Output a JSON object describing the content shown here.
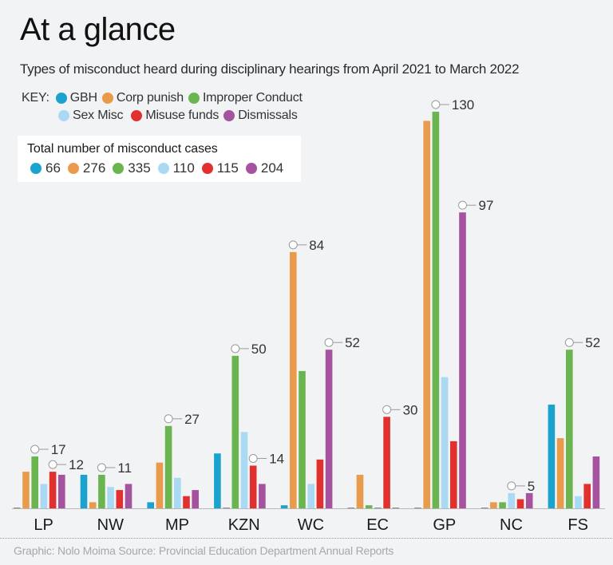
{
  "title": "At a glance",
  "subtitle": "Types of misconduct heard during disciplinary hearings from April 2021 to March 2022",
  "key": {
    "label": "KEY:",
    "items": [
      {
        "name": "GBH",
        "color": "#1ba3cf"
      },
      {
        "name": "Corp punish",
        "color": "#e99a4b"
      },
      {
        "name": "Improper Conduct",
        "color": "#6bb550"
      },
      {
        "name": "Sex Misc",
        "color": "#aad9f3"
      },
      {
        "name": "Misuse funds",
        "color": "#e0312e"
      },
      {
        "name": "Dismissals",
        "color": "#a5539e"
      }
    ]
  },
  "totals": {
    "title": "Total number of misconduct cases",
    "items": [
      {
        "series": "GBH",
        "value": "66",
        "color": "#1ba3cf"
      },
      {
        "series": "Corp punish",
        "value": "276",
        "color": "#e99a4b"
      },
      {
        "series": "Improper Conduct",
        "value": "335",
        "color": "#6bb550"
      },
      {
        "series": "Sex Misc",
        "value": "110",
        "color": "#aad9f3"
      },
      {
        "series": "Misuse funds",
        "value": "115",
        "color": "#e0312e"
      },
      {
        "series": "Dismissals",
        "value": "204",
        "color": "#a5539e"
      }
    ]
  },
  "footer": "Graphic: Nolo Moima Source: Provincial Education Department Annual Reports",
  "chart_data": {
    "type": "bar",
    "title": "At a glance",
    "subtitle": "Types of misconduct heard during disciplinary hearings from April 2021 to March 2022",
    "xlabel": "",
    "ylabel": "",
    "ylim": [
      0,
      130
    ],
    "grid": false,
    "legend": "top-left",
    "categories": [
      "LP",
      "NW",
      "MP",
      "KZN",
      "WC",
      "EC",
      "GP",
      "NC",
      "FS"
    ],
    "series": [
      {
        "name": "GBH",
        "color": "#1ba3cf",
        "values": [
          0,
          11,
          2,
          18,
          1,
          0,
          0,
          0,
          34
        ]
      },
      {
        "name": "Corp punish",
        "color": "#e99a4b",
        "values": [
          12,
          2,
          15,
          0,
          84,
          11,
          127,
          2,
          23
        ]
      },
      {
        "name": "Improper Conduct",
        "color": "#6bb550",
        "values": [
          17,
          11,
          27,
          50,
          45,
          1,
          130,
          2,
          52
        ]
      },
      {
        "name": "Sex Misc",
        "color": "#aad9f3",
        "values": [
          8,
          7,
          10,
          25,
          8,
          0,
          43,
          5,
          4
        ]
      },
      {
        "name": "Misuse funds",
        "color": "#e0312e",
        "values": [
          12,
          6,
          4,
          14,
          16,
          30,
          22,
          3,
          8
        ]
      },
      {
        "name": "Dismissals",
        "color": "#a5539e",
        "values": [
          11,
          8,
          6,
          8,
          52,
          0,
          97,
          5,
          17
        ]
      }
    ],
    "annotations": [
      {
        "category": "LP",
        "series": "Improper Conduct",
        "label": "17"
      },
      {
        "category": "LP",
        "series": "Misuse funds",
        "label": "12"
      },
      {
        "category": "NW",
        "series": "Improper Conduct",
        "label": "11"
      },
      {
        "category": "MP",
        "series": "Improper Conduct",
        "label": "27"
      },
      {
        "category": "KZN",
        "series": "Improper Conduct",
        "label": "50"
      },
      {
        "category": "KZN",
        "series": "Misuse funds",
        "label": "14"
      },
      {
        "category": "WC",
        "series": "Corp punish",
        "label": "84"
      },
      {
        "category": "WC",
        "series": "Dismissals",
        "label": "52"
      },
      {
        "category": "EC",
        "series": "Misuse funds",
        "label": "30"
      },
      {
        "category": "GP",
        "series": "Improper Conduct",
        "label": "130"
      },
      {
        "category": "GP",
        "series": "Dismissals",
        "label": "97"
      },
      {
        "category": "NC",
        "series": "Sex Misc",
        "label": "5"
      },
      {
        "category": "FS",
        "series": "Improper Conduct",
        "label": "52"
      }
    ]
  }
}
